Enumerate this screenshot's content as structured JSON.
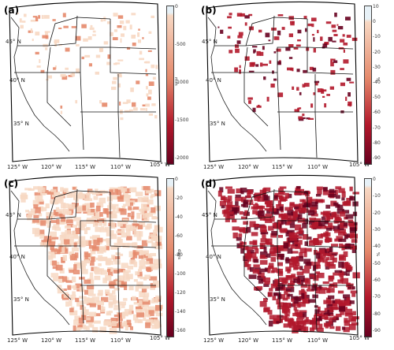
{
  "panels": [
    {
      "label": "(a)",
      "unit": "mm",
      "ticks": [
        "0",
        "-500",
        "-1000",
        "-1500",
        "-2000"
      ],
      "fill": "sparse_light",
      "lat_labels": [
        "45° N",
        "40° N",
        "35° N"
      ],
      "lon_labels": []
    },
    {
      "label": "(b)",
      "unit": "%",
      "ticks": [
        "10",
        "0",
        "-10",
        "-20",
        "-30",
        "-40",
        "-50",
        "-60",
        "-70",
        "-80",
        "-90"
      ],
      "fill": "sparse_dark",
      "lat_labels": [
        "45° N",
        "40° N",
        "35° N"
      ],
      "lon_labels": [
        "125° W",
        "120° W",
        "115° W",
        "110° W",
        "105° W"
      ]
    },
    {
      "label": "(c)",
      "unit": "days",
      "ticks": [
        "0",
        "-20",
        "-40",
        "-60",
        "-80",
        "-100",
        "-120",
        "-140",
        "-160"
      ],
      "fill": "dense_light",
      "lat_labels": [
        "45° N",
        "40° N",
        "35° N"
      ],
      "lon_labels": [
        "125° W",
        "120° W",
        "115° W",
        "110° W",
        "105° W"
      ]
    },
    {
      "label": "(d)",
      "unit": "%",
      "ticks": [
        "0",
        "-10",
        "-20",
        "-30",
        "-40",
        "-50",
        "-60",
        "-70",
        "-80",
        "-90"
      ],
      "fill": "dense_dark",
      "lat_labels": [
        "45° N",
        "40° N",
        "35° N"
      ],
      "lon_labels": [
        "125° W",
        "120° W",
        "115° W",
        "110° W",
        "105° W"
      ]
    }
  ],
  "colors": {
    "ramp_top": "#e7f1f7",
    "ramp_light": "#f7d8c3",
    "ramp_mid": "#e58a6c",
    "ramp_dark": "#b2182b",
    "ramp_bottom": "#67001f"
  }
}
